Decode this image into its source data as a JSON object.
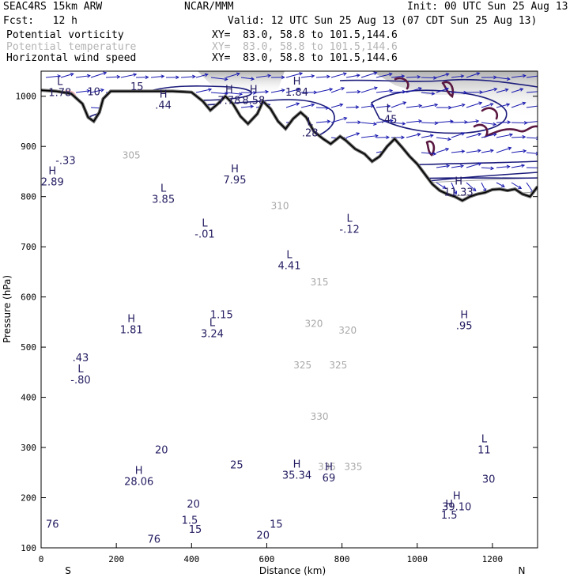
{
  "header": {
    "model": "SEAC4RS 15km ARW",
    "org": "NCAR/MMM",
    "init": "Init: 00 UTC Sun 25 Aug 13",
    "fcst": "Fcst:   12 h",
    "valid": "Valid: 12 UTC Sun 25 Aug 13 (07 CDT Sun 25 Aug 13)",
    "fields": [
      {
        "name": "Potential vorticity",
        "xy": "XY=  83.0, 58.8 to 101.5,144.6",
        "color": "#000000"
      },
      {
        "name": "Potential temperature",
        "xy": "XY=  83.0, 58.8 to 101.5,144.6",
        "color": "#b4b4b4"
      },
      {
        "name": "Horizontal wind speed",
        "xy": "XY=  83.0, 58.8 to 101.5,144.6",
        "color": "#000000"
      }
    ]
  },
  "colors": {
    "pv_fill": "#f7b9bb",
    "wind_contour": "#1c1c7c",
    "pv_contour": "#5a1840",
    "theta_contour": "#a8a8a8",
    "wind_vector": "#1a1ab0",
    "terrain": "#000000",
    "label": "#221b60"
  },
  "chart_data": {
    "type": "cross-section",
    "xlabel": "Distance (km)",
    "ylabel": "Pressure (hPa)",
    "xlim": [
      0,
      1320
    ],
    "ylim": [
      1050,
      100
    ],
    "x_ticks": [
      "0",
      "200",
      "400",
      "600",
      "800",
      "1000",
      "1200"
    ],
    "y_ticks": [
      "100",
      "200",
      "300",
      "400",
      "500",
      "600",
      "700",
      "800",
      "900",
      "1000"
    ],
    "endpoint_labels": {
      "left": "S",
      "right": "N"
    },
    "theta_labels": [
      {
        "text": "335",
        "x": 760,
        "p": 255
      },
      {
        "text": "335",
        "x": 830,
        "p": 255
      },
      {
        "text": "330",
        "x": 740,
        "p": 355
      },
      {
        "text": "325",
        "x": 695,
        "p": 458
      },
      {
        "text": "325",
        "x": 790,
        "p": 458
      },
      {
        "text": "320",
        "x": 725,
        "p": 540
      },
      {
        "text": "320",
        "x": 815,
        "p": 527
      },
      {
        "text": "315",
        "x": 740,
        "p": 623
      },
      {
        "text": "310",
        "x": 635,
        "p": 775
      },
      {
        "text": "305",
        "x": 240,
        "p": 876
      }
    ],
    "wind_labels": [
      {
        "text": "20",
        "x": 590,
        "p": 118
      },
      {
        "text": "20",
        "x": 405,
        "p": 180
      },
      {
        "text": "20",
        "x": 320,
        "p": 288
      },
      {
        "text": "25",
        "x": 520,
        "p": 258
      },
      {
        "text": "30",
        "x": 1190,
        "p": 230
      },
      {
        "text": "15",
        "x": 410,
        "p": 130
      },
      {
        "text": "15",
        "x": 625,
        "p": 140
      },
      {
        "text": "15",
        "x": 255,
        "p": 1012
      },
      {
        "text": "76",
        "x": 30,
        "p": 140
      },
      {
        "text": "76",
        "x": 300,
        "p": 110
      }
    ],
    "highs_lows": [
      {
        "sym": "H",
        "value": "28.06",
        "x": 260,
        "p": 225
      },
      {
        "sym": "H",
        "value": "35.34",
        "x": 680,
        "p": 238
      },
      {
        "sym": "H",
        "value": "69",
        "x": 765,
        "p": 232
      },
      {
        "sym": "H",
        "value": "39.10",
        "x": 1105,
        "p": 175
      },
      {
        "sym": "L",
        "value": "11",
        "x": 1178,
        "p": 288
      },
      {
        "sym": "L",
        "value": "-.80",
        "x": 105,
        "p": 428
      },
      {
        "sym": "",
        "value": ".43",
        "x": 105,
        "p": 472
      },
      {
        "sym": "H",
        "value": "1.81",
        "x": 240,
        "p": 528
      },
      {
        "sym": "L",
        "value": "3.24",
        "x": 455,
        "p": 520
      },
      {
        "sym": "",
        "value": "1.15",
        "x": 480,
        "p": 558
      },
      {
        "sym": "H",
        "value": ".95",
        "x": 1125,
        "p": 536
      },
      {
        "sym": "L",
        "value": "4.41",
        "x": 660,
        "p": 655
      },
      {
        "sym": "L",
        "value": "-.01",
        "x": 435,
        "p": 718
      },
      {
        "sym": "L",
        "value": "-.12",
        "x": 820,
        "p": 728
      },
      {
        "sym": "L",
        "value": "3.85",
        "x": 325,
        "p": 788
      },
      {
        "sym": "H",
        "value": "7.95",
        "x": 515,
        "p": 826
      },
      {
        "sym": "H",
        "value": "2.89",
        "x": 30,
        "p": 822
      },
      {
        "sym": "",
        "value": "-.33",
        "x": 65,
        "p": 865
      },
      {
        "sym": "H",
        "value": "11.33",
        "x": 1110,
        "p": 802
      },
      {
        "sym": "L",
        "value": ".28",
        "x": 715,
        "p": 920
      },
      {
        "sym": "L",
        "value": ".45",
        "x": 925,
        "p": 947
      },
      {
        "sym": "H",
        "value": ".44",
        "x": 325,
        "p": 975
      },
      {
        "sym": "H",
        "value": "7.78",
        "x": 500,
        "p": 985
      },
      {
        "sym": "H",
        "value": "8.58",
        "x": 565,
        "p": 985
      },
      {
        "sym": "H",
        "value": "1.84",
        "x": 680,
        "p": 1001
      },
      {
        "sym": "L",
        "value": "1.78",
        "x": 50,
        "p": 1000
      },
      {
        "sym": "",
        "value": "10",
        "x": 140,
        "p": 1002
      },
      {
        "sym": "H",
        "value": "1.5",
        "x": 1085,
        "p": 158
      },
      {
        "sym": "",
        "value": "1.5",
        "x": 395,
        "p": 148
      }
    ]
  }
}
